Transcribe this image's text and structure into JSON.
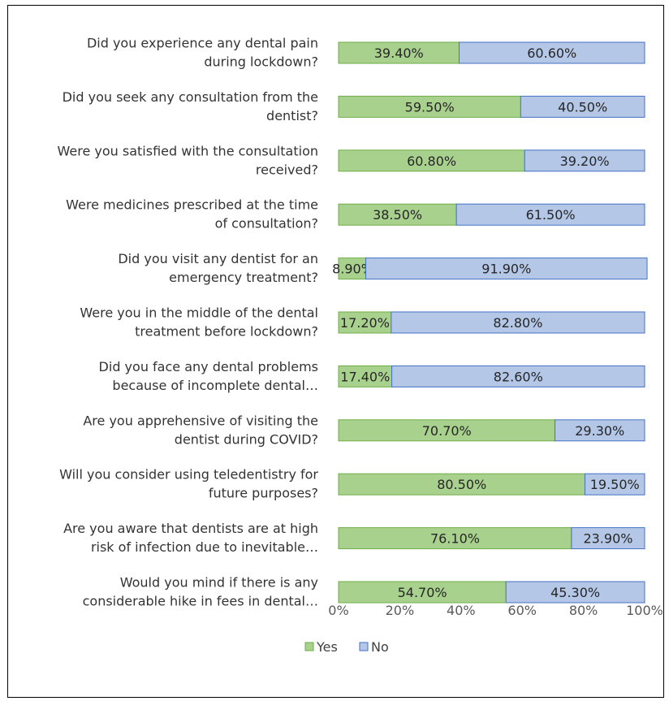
{
  "chart_data": {
    "type": "bar",
    "orientation": "horizontal",
    "stacked": true,
    "percent_stacked": true,
    "categories": [
      [
        "Did you experience any dental pain",
        "during lockdown?"
      ],
      [
        "Did you seek any consultation from the",
        "dentist?"
      ],
      [
        "Were you satisfied with the consultation",
        "received?"
      ],
      [
        "Were medicines prescribed at the time",
        "of consultation?"
      ],
      [
        "Did you visit any dentist for an",
        "emergency treatment?"
      ],
      [
        "Were you in the middle of the dental",
        "treatment before lockdown?"
      ],
      [
        "Did you face any dental problems",
        "because of incomplete dental…"
      ],
      [
        "Are you apprehensive of visiting the",
        "dentist during COVID?"
      ],
      [
        "Will you consider using teledentistry for",
        "future purposes?"
      ],
      [
        "Are you aware that dentists are at high",
        "risk of infection due to inevitable…"
      ],
      [
        "Would you mind if there is any",
        "considerable hike in fees in dental…"
      ]
    ],
    "series": [
      {
        "name": "Yes",
        "color": "#a9d18e",
        "stroke": "#70ad47",
        "values": [
          39.4,
          59.5,
          60.8,
          38.5,
          8.9,
          17.2,
          17.4,
          70.7,
          80.5,
          76.1,
          54.7
        ],
        "labels": [
          "39.40%",
          "59.50%",
          "60.80%",
          "38.50%",
          "8.90%",
          "17.20%",
          "17.40%",
          "70.70%",
          "80.50%",
          "76.10%",
          "54.70%"
        ]
      },
      {
        "name": "No",
        "color": "#b4c7e7",
        "stroke": "#4472c4",
        "values": [
          60.6,
          40.5,
          39.2,
          61.5,
          91.9,
          82.8,
          82.6,
          29.3,
          19.5,
          23.9,
          45.3
        ],
        "labels": [
          "60.60%",
          "40.50%",
          "39.20%",
          "61.50%",
          "91.90%",
          "82.80%",
          "82.60%",
          "29.30%",
          "19.50%",
          "23.90%",
          "45.30%"
        ]
      }
    ],
    "x_ticks": [
      "0%",
      "20%",
      "40%",
      "60%",
      "80%",
      "100%"
    ],
    "xlim": [
      0,
      100
    ],
    "grid": false,
    "legend": "bottom"
  }
}
